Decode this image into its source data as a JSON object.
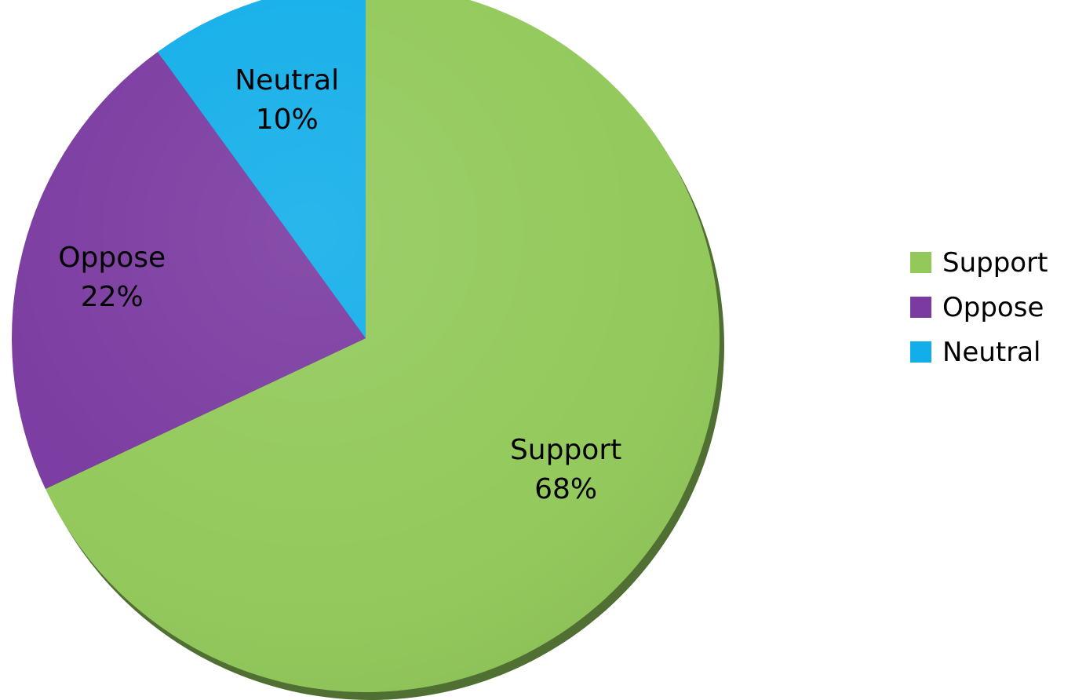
{
  "chart_data": {
    "type": "pie",
    "title": "",
    "slices": [
      {
        "name": "Support",
        "value": 68,
        "label": "68%",
        "color": "#92C95A"
      },
      {
        "name": "Oppose",
        "value": 22,
        "label": "22%",
        "color": "#7A3AA0"
      },
      {
        "name": "Neutral",
        "value": 10,
        "label": "10%",
        "color": "#12AEE9"
      }
    ],
    "start_angle_deg": 0,
    "direction": "clockwise",
    "legend_placement": "right"
  },
  "legend": {
    "items": [
      {
        "label": "Support",
        "color": "#92C95A"
      },
      {
        "label": "Oppose",
        "color": "#7A3AA0"
      },
      {
        "label": "Neutral",
        "color": "#12AEE9"
      }
    ]
  }
}
